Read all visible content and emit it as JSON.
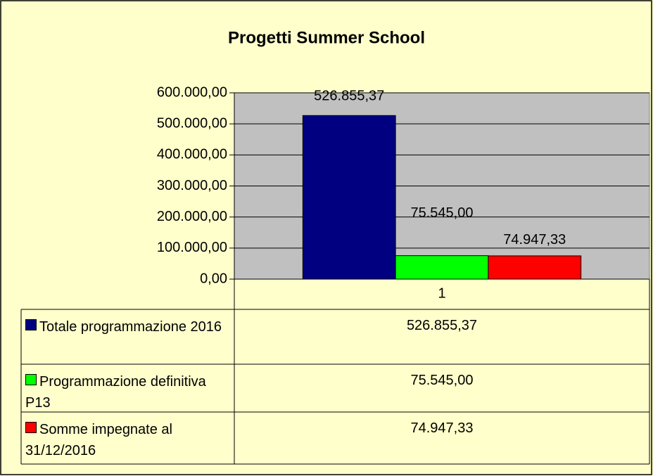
{
  "chart_data": {
    "type": "bar",
    "title": "Progetti Summer School",
    "categories": [
      "1"
    ],
    "series": [
      {
        "name": "Totale programmazione 2016",
        "color": "#000080",
        "values": [
          526855.37
        ],
        "value_labels": [
          "526.855,37"
        ]
      },
      {
        "name": "Programmazione definitiva P13",
        "color": "#00ff00",
        "values": [
          75545.0
        ],
        "value_labels": [
          "75.545,00"
        ]
      },
      {
        "name": "Somme impegnate al 31/12/2016",
        "color": "#ff0000",
        "values": [
          74947.33
        ],
        "value_labels": [
          "74.947,33"
        ]
      }
    ],
    "ylim": [
      0,
      600000
    ],
    "yticks": [
      {
        "value": 0,
        "label": "0,00"
      },
      {
        "value": 100000,
        "label": "100.000,00"
      },
      {
        "value": 200000,
        "label": "200.000,00"
      },
      {
        "value": 300000,
        "label": "300.000,00"
      },
      {
        "value": 400000,
        "label": "400.000,00"
      },
      {
        "value": 500000,
        "label": "500.000,00"
      },
      {
        "value": 600000,
        "label": "600.000,00"
      }
    ],
    "grid": true,
    "data_table": true
  }
}
